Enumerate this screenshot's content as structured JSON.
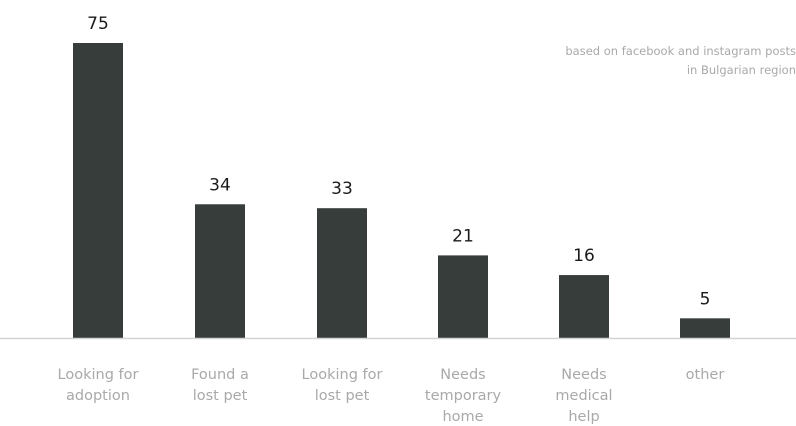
{
  "note": {
    "line1": "based on facebook and instagram posts",
    "line2": "in Bulgarian region"
  },
  "colors": {
    "bar": "#363d3b",
    "baseline": "#d3d3d3",
    "category_label": "#a9a9a9",
    "value_label": "#1a1a1a",
    "note": "#a9a9a9"
  },
  "chart_data": {
    "type": "bar",
    "title": "",
    "xlabel": "",
    "ylabel": "",
    "ylim": [
      0,
      75
    ],
    "grid": false,
    "categories": [
      [
        "Looking for",
        "adoption"
      ],
      [
        "Found a",
        "lost pet"
      ],
      [
        "Looking for",
        "lost pet"
      ],
      [
        "Needs",
        "temporary",
        "home"
      ],
      [
        "Needs",
        "medical",
        "help"
      ],
      [
        "other"
      ]
    ],
    "values": [
      75,
      34,
      33,
      21,
      16,
      5
    ]
  }
}
